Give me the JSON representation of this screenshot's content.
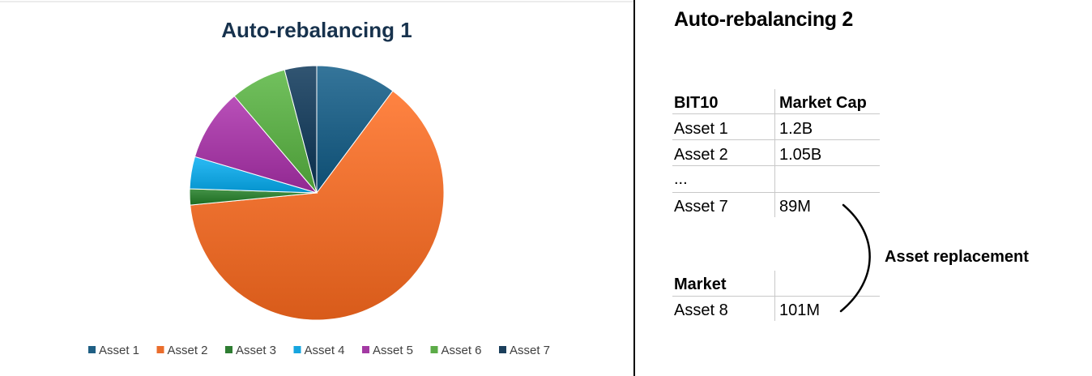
{
  "chart_data": {
    "type": "pie",
    "title": "Auto-rebalancing 1",
    "categories": [
      "Asset 1",
      "Asset 2",
      "Asset 3",
      "Asset 4",
      "Asset 5",
      "Asset 6",
      "Asset 7"
    ],
    "values": [
      10,
      62,
      2,
      4,
      9,
      7,
      4
    ],
    "colors": [
      "#1f5f84",
      "#ea6d2c",
      "#2e7d32",
      "#16a5df",
      "#a33aa3",
      "#5cab48",
      "#1b3f5c"
    ],
    "legend": "bottom"
  },
  "right_panel": {
    "title": "Auto-rebalancing 2",
    "table_headers": [
      "BIT10",
      "Market Cap"
    ],
    "rows": [
      {
        "asset": "Asset 1",
        "cap": "1.2B"
      },
      {
        "asset": "Asset 2",
        "cap": "1.05B"
      },
      {
        "asset": "...",
        "cap": ""
      },
      {
        "asset": "Asset 7",
        "cap": "89M"
      }
    ],
    "market_header": "Market",
    "market_row": {
      "asset": "Asset 8",
      "cap": "101M"
    },
    "annotation": "Asset replacement"
  }
}
